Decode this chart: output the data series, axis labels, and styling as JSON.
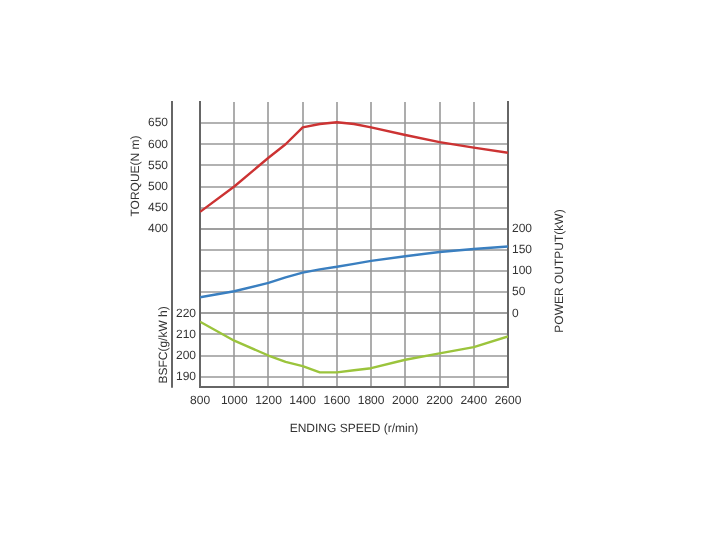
{
  "chart_data": {
    "type": "line",
    "xlabel": "ENDING SPEED (r/min)",
    "ylabel": "TORQUE(N m)",
    "y2label": "POWER OUTPUT(kW)",
    "y3label": "BSFC(g/kW h)",
    "x": [
      800,
      1000,
      1200,
      1300,
      1400,
      1500,
      1600,
      1700,
      1800,
      2000,
      2200,
      2400,
      2600
    ],
    "xlim": [
      800,
      2600
    ],
    "xticks": [
      800,
      1000,
      1200,
      1400,
      1600,
      1800,
      2000,
      2200,
      2400,
      2600
    ],
    "ylim": [
      25,
      700
    ],
    "yticks": [
      400,
      450,
      500,
      550,
      600,
      650
    ],
    "y2lim": [
      -175,
      500
    ],
    "y2ticks": [
      0,
      50,
      100,
      150,
      200
    ],
    "y3lim": [
      185,
      320
    ],
    "y3ticks": [
      190,
      200,
      210,
      220
    ],
    "grid": true,
    "legend": false,
    "marker": "none",
    "line_style": "solid",
    "series": [
      {
        "color": "#cc3333",
        "axis": "y",
        "values": [
          440,
          500,
          568,
          600,
          640,
          648,
          652,
          648,
          640,
          622,
          605,
          592,
          580
        ]
      },
      {
        "color": "#3a7fc0",
        "axis": "y2",
        "values": [
          38,
          52,
          72,
          85,
          96,
          104,
          110,
          117,
          124,
          135,
          145,
          152,
          158
        ]
      },
      {
        "color": "#9bc43c",
        "axis": "y3",
        "values": [
          216,
          207,
          200,
          197,
          195,
          192,
          192,
          193,
          194,
          198,
          201,
          204,
          209
        ]
      }
    ]
  }
}
